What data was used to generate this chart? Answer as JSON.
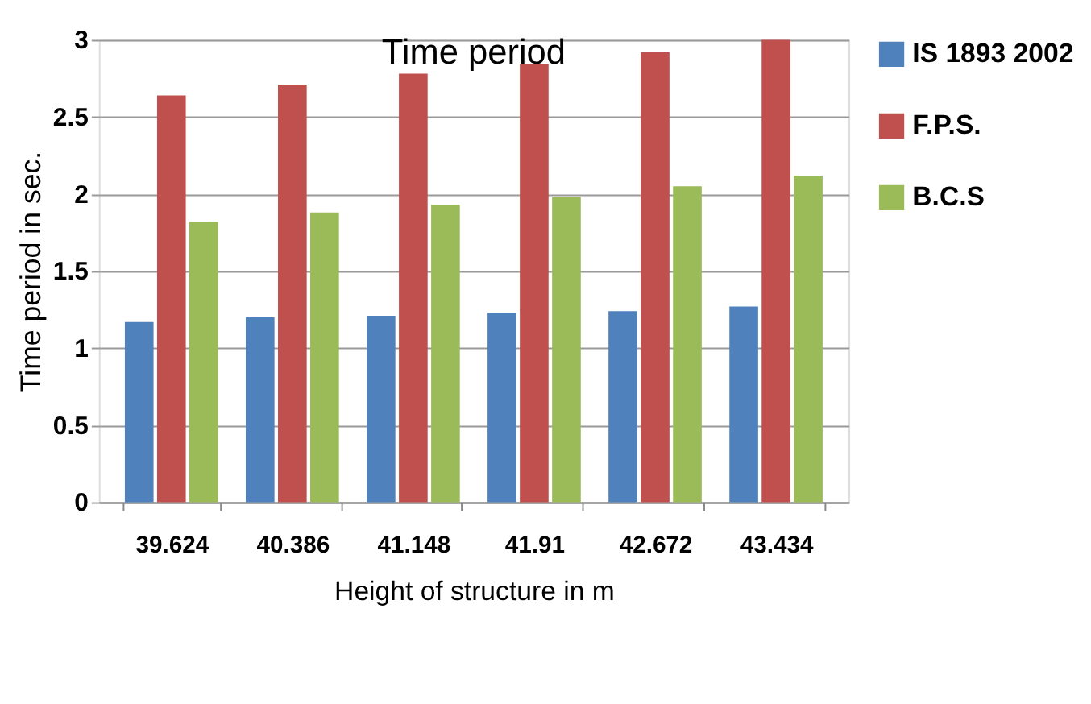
{
  "chart_data": {
    "type": "bar",
    "title": "Time period",
    "xlabel": "Height of structure in m",
    "ylabel": "Time period in sec.",
    "categories": [
      "39.624",
      "40.386",
      "41.148",
      "41.91",
      "42.672",
      "43.434"
    ],
    "series": [
      {
        "name": "IS 1893 2002",
        "color": "#4f81bd",
        "values": [
          1.17,
          1.2,
          1.21,
          1.23,
          1.24,
          1.27
        ]
      },
      {
        "name": "F.P.S.",
        "color": "#c0504d",
        "values": [
          2.64,
          2.71,
          2.78,
          2.84,
          2.92,
          3.0
        ]
      },
      {
        "name": "B.C.S",
        "color": "#9bbb59",
        "values": [
          1.82,
          1.88,
          1.93,
          1.98,
          2.05,
          2.12
        ]
      }
    ],
    "ylim": [
      0,
      3
    ],
    "yticks": [
      0,
      0.5,
      1,
      1.5,
      2,
      2.5,
      3
    ],
    "grid": "y",
    "legend": "right"
  }
}
